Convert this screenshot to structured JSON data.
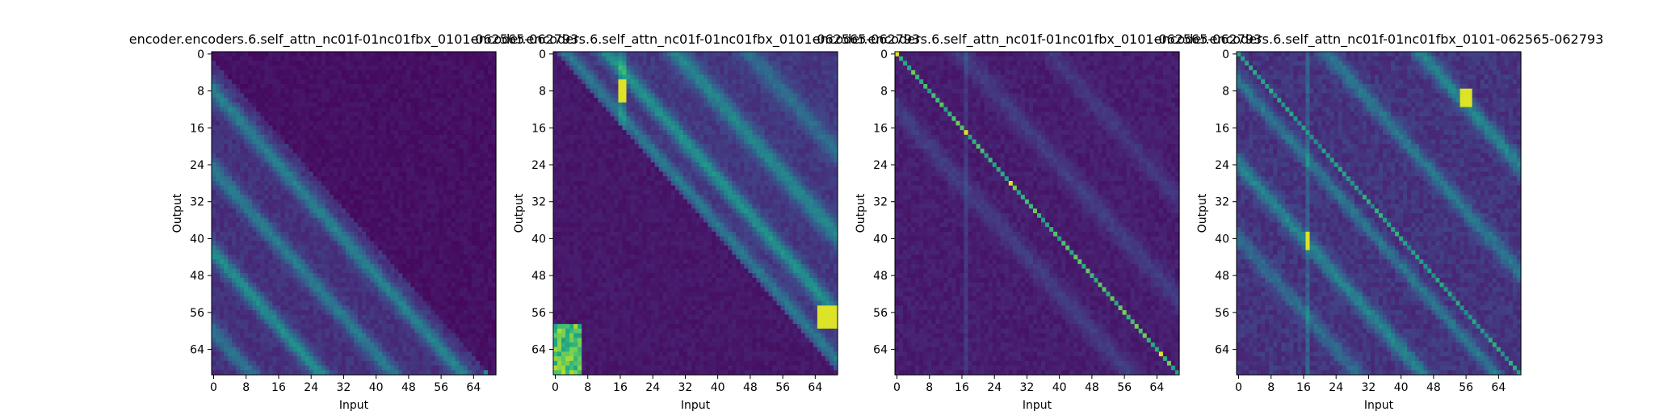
{
  "chart_data": [
    {
      "type": "heatmap",
      "title": "encoder.encoders.6.self_attn_nc01f-01nc01fbx_0101-062565-062793",
      "xlabel": "Input",
      "ylabel": "Output",
      "rows": 70,
      "cols": 70,
      "xticks": [
        0,
        8,
        16,
        24,
        32,
        40,
        48,
        56,
        64
      ],
      "yticks": [
        0,
        8,
        16,
        24,
        32,
        40,
        48,
        56,
        64
      ],
      "colormap": "viridis",
      "pattern": "lower-diagonal bands, upper triangle near zero"
    },
    {
      "type": "heatmap",
      "title": "encoder.encoders.6.self_attn_nc01f-01nc01fbx_0101-062565-062793",
      "xlabel": "Input",
      "ylabel": "Output",
      "rows": 70,
      "cols": 70,
      "xticks": [
        0,
        8,
        16,
        24,
        32,
        40,
        48,
        56,
        64
      ],
      "yticks": [
        0,
        8,
        16,
        24,
        32,
        40,
        48,
        56,
        64
      ],
      "colormap": "viridis",
      "pattern": "upper-diagonal bands, lower triangle near zero"
    },
    {
      "type": "heatmap",
      "title": "encoder.encoders.6.self_attn_nc01f-01nc01fbx_0101-062565-062793",
      "xlabel": "Input",
      "ylabel": "Output",
      "rows": 70,
      "cols": 70,
      "xticks": [
        0,
        8,
        16,
        24,
        32,
        40,
        48,
        56,
        64
      ],
      "yticks": [
        0,
        8,
        16,
        24,
        32,
        40,
        48,
        56,
        64
      ],
      "colormap": "viridis",
      "pattern": "strong main diagonal, faint diagonal bands"
    },
    {
      "type": "heatmap",
      "title": "encoder.encoders.6.self_attn_nc01f-01nc01fbx_0101-062565-062793",
      "xlabel": "Input",
      "ylabel": "Output",
      "rows": 70,
      "cols": 70,
      "xticks": [
        0,
        8,
        16,
        24,
        32,
        40,
        48,
        56,
        64
      ],
      "yticks": [
        0,
        8,
        16,
        24,
        32,
        40,
        48,
        56,
        64
      ],
      "colormap": "viridis",
      "pattern": "main diagonal plus multiple parallel bands with bright spots"
    }
  ]
}
